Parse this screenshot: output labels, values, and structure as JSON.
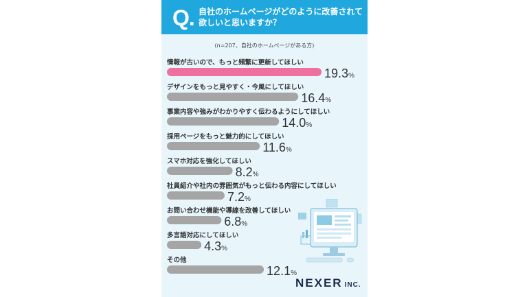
{
  "header": {
    "q_mark": "Q.",
    "question_line1": "自社のホームページがどのように改善されて",
    "question_line2": "欲しいと思いますか？"
  },
  "sample_note": "(n=207、自社のホームページがある方)",
  "brand": {
    "main": "NEXER",
    "sub": "INC."
  },
  "colors": {
    "header": "#1fa7de",
    "background": "#e8f6fc",
    "highlight": "#ef6fa0",
    "bar": "#a5a5a5"
  },
  "chart_data": {
    "type": "bar",
    "orientation": "horizontal",
    "unit": "%",
    "categories": [
      "情報が古いので、もっと頻繁に更新してほしい",
      "デザインをもっと見やすく・今風にしてほしい",
      "事業内容や強みがわかりやすく伝わるようにしてほしい",
      "採用ページをもっと魅力的にしてほしい",
      "スマホ対応を強化してほしい",
      "社員紹介や社内の雰囲気がもっと伝わる内容にしてほしい",
      "お問い合わせ機能や導線を改善してほしい",
      "多言語対応にしてほしい",
      "その他"
    ],
    "values": [
      19.3,
      16.4,
      14.0,
      11.6,
      8.2,
      7.2,
      6.8,
      4.3,
      12.1
    ],
    "value_labels": [
      "19.3",
      "16.4",
      "14.0",
      "11.6",
      "8.2",
      "7.2",
      "6.8",
      "4.3",
      "12.1"
    ],
    "highlight_index": 0,
    "xlim": [
      0,
      19.3
    ],
    "grid": false,
    "legend": "none"
  }
}
